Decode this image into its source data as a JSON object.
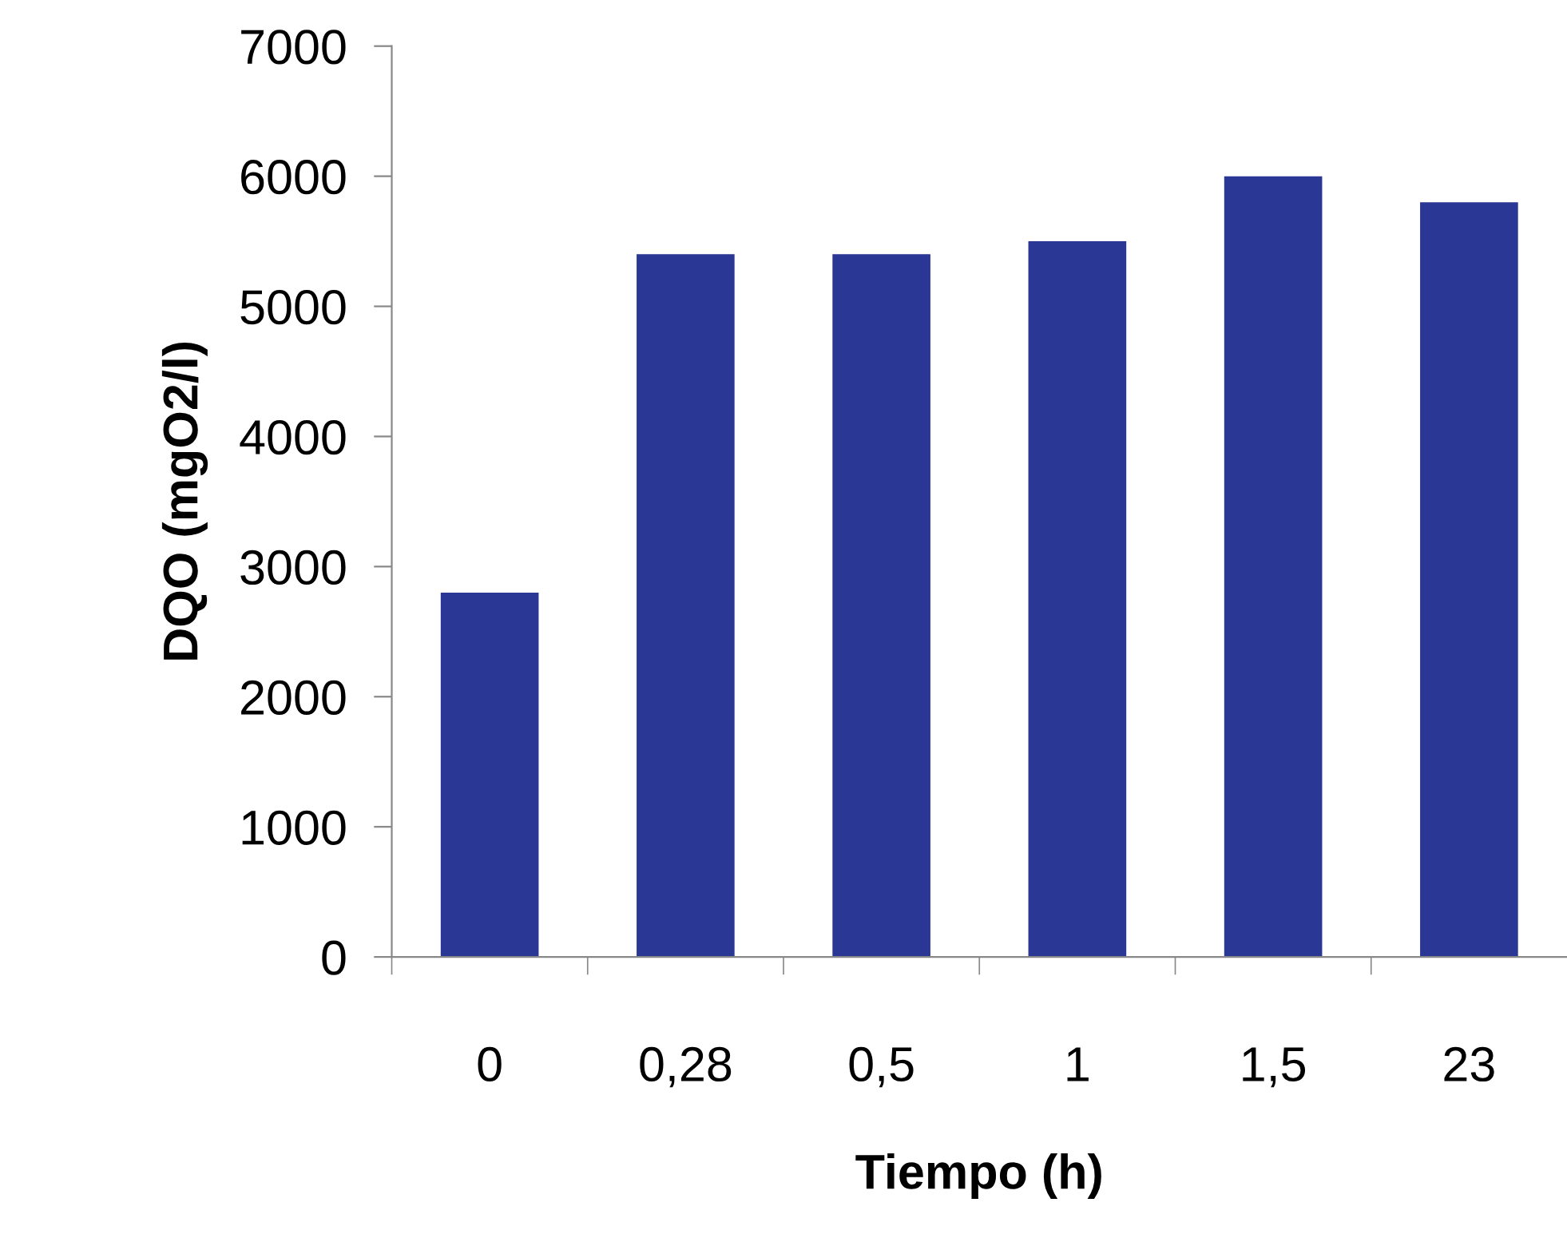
{
  "chart_data": {
    "type": "bar",
    "xlabel": "Tiempo (h)",
    "ylabel": "DQO (mgO2/l)",
    "categories": [
      "0",
      "0,28",
      "0,5",
      "1",
      "1,5",
      "23"
    ],
    "values": [
      2800,
      5400,
      5400,
      5500,
      6000,
      5800
    ],
    "color": "#2b3794",
    "ylim": [
      0,
      7000
    ],
    "yticks": [
      0,
      1000,
      2000,
      3000,
      4000,
      5000,
      6000,
      7000
    ],
    "grid": false,
    "legend": false
  }
}
